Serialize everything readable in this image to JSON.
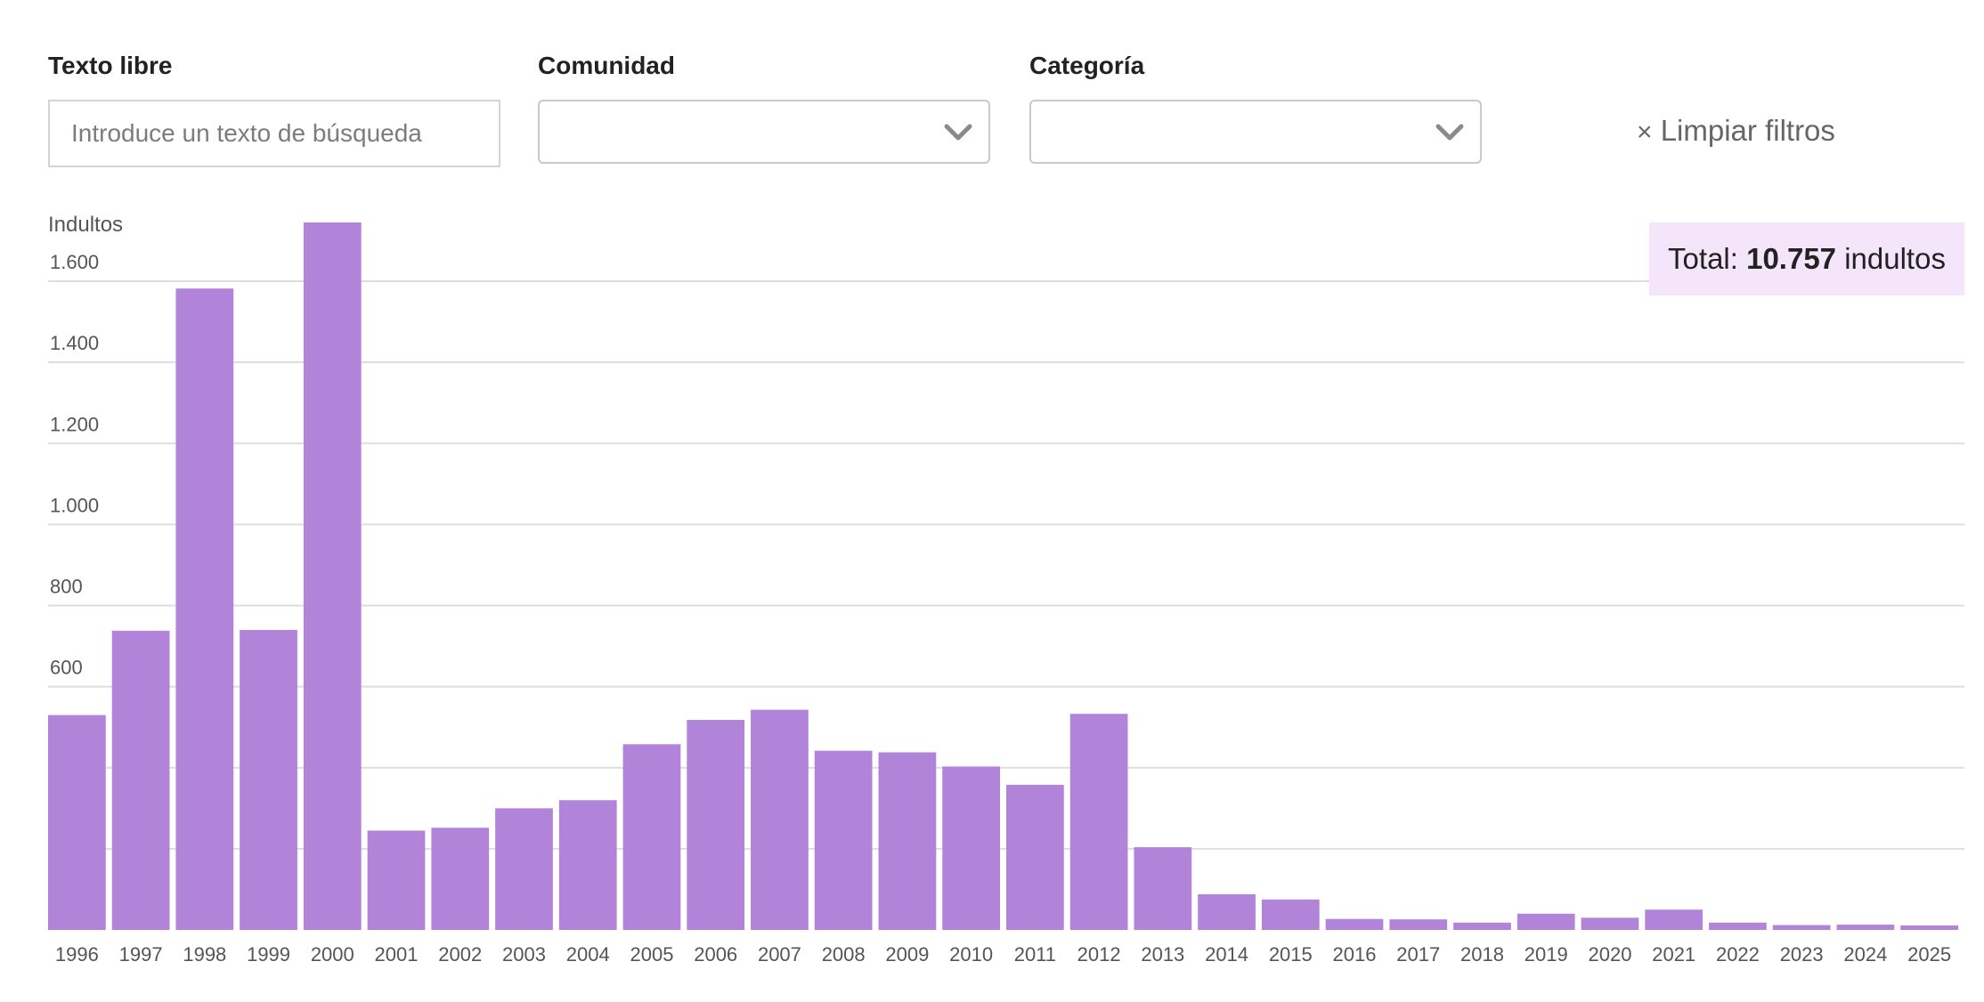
{
  "filters": {
    "texto_label": "Texto libre",
    "texto_placeholder": "Introduce un texto de búsqueda",
    "texto_value": "",
    "comunidad_label": "Comunidad",
    "comunidad_value": "",
    "categoria_label": "Categoría",
    "categoria_value": "",
    "clear_icon": "×",
    "clear_label": "Limpiar filtros"
  },
  "total": {
    "prefix": "Total:",
    "value": "10.757",
    "suffix": "indultos"
  },
  "colors": {
    "bar": "#b184da",
    "grid": "#dddddd",
    "total_bg": "#f4e5fb"
  },
  "chart_data": {
    "type": "bar",
    "ylabel": "Indultos",
    "ylim": [
      0,
      1745
    ],
    "yticks": [
      200,
      400,
      600,
      800,
      1000,
      1200,
      1400,
      1600
    ],
    "ytick_labels": [
      "",
      "",
      "600",
      "800",
      "1.000",
      "1.200",
      "1.400",
      "1.600"
    ],
    "grid": true,
    "categories": [
      "1996",
      "1997",
      "1998",
      "1999",
      "2000",
      "2001",
      "2002",
      "2003",
      "2004",
      "2005",
      "2006",
      "2007",
      "2008",
      "2009",
      "2010",
      "2011",
      "2012",
      "2013",
      "2014",
      "2015",
      "2016",
      "2017",
      "2018",
      "2019",
      "2020",
      "2021",
      "2022",
      "2023",
      "2024",
      "2025"
    ],
    "values": [
      530,
      738,
      1582,
      740,
      1745,
      245,
      252,
      300,
      320,
      458,
      518,
      543,
      442,
      438,
      403,
      358,
      533,
      204,
      88,
      75,
      27,
      26,
      18,
      40,
      30,
      50,
      18,
      12,
      13,
      11
    ]
  }
}
